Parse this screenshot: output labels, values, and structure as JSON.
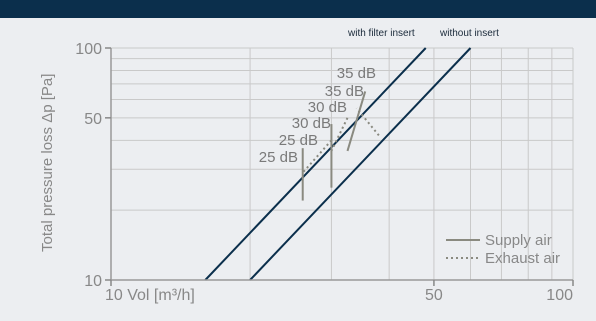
{
  "colors": {
    "header_bar": "#0b2f4c",
    "background": "#eceef1",
    "curves": "#0b2f4c",
    "supply": "#8a8a80",
    "exhaust": "#8a8a80",
    "grid": "#c9c9c9",
    "axis_text": "#888888"
  },
  "chart_data": {
    "type": "line",
    "xscale": "log",
    "yscale": "log",
    "xlim": [
      10,
      100
    ],
    "ylim": [
      10,
      100
    ],
    "xlabel": "Vol [m³/h]",
    "ylabel": "Total pressure loss Δp [Pa]",
    "x_tick_labels": [
      "10 Vol [m³/h]",
      "50",
      "100"
    ],
    "x_ticks": [
      10,
      50,
      100
    ],
    "y_tick_labels": [
      "10",
      "50",
      "100"
    ],
    "y_ticks": [
      10,
      50,
      100
    ],
    "grid": true,
    "series": [
      {
        "name": "with filter insert",
        "x": [
          16,
          48
        ],
        "y": [
          10,
          100
        ],
        "style": "solid"
      },
      {
        "name": "without insert",
        "x": [
          20,
          60
        ],
        "y": [
          10,
          100
        ],
        "style": "solid"
      }
    ],
    "supply_lines": [
      {
        "label": "25 dB",
        "x": [
          26,
          26
        ],
        "y": [
          22,
          37
        ]
      },
      {
        "label": "30 dB",
        "x": [
          30,
          30
        ],
        "y": [
          25,
          47
        ]
      },
      {
        "label": "35 dB",
        "x": [
          32.5,
          35.5
        ],
        "y": [
          36,
          65
        ]
      }
    ],
    "exhaust_lines": [
      {
        "label": "25 dB",
        "x": [
          30,
          26
        ],
        "y": [
          40,
          29
        ]
      },
      {
        "label": "30 dB",
        "x": [
          32.5,
          30
        ],
        "y": [
          50,
          36
        ]
      },
      {
        "label": "35 dB",
        "x": [
          38,
          34
        ],
        "y": [
          42,
          55
        ]
      }
    ],
    "annotations": [
      "35 dB",
      "35 dB",
      "30 dB",
      "30 dB",
      "25 dB",
      "25 dB"
    ],
    "legend": {
      "position": "bottom-right",
      "entries": [
        {
          "label": "Supply air",
          "style": "solid"
        },
        {
          "label": "Exhaust air",
          "style": "dotted"
        }
      ]
    }
  }
}
